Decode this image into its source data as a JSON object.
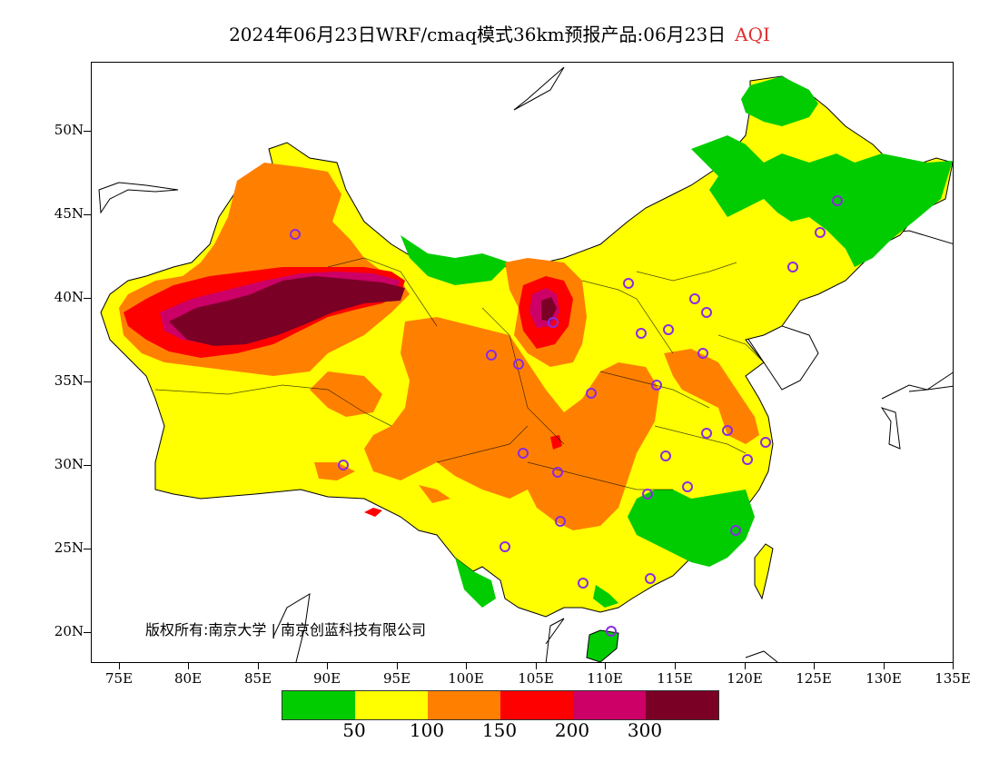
{
  "title": {
    "main": "2024年06月23日WRF/cmaq模式36km预报产品:06月23日",
    "variable": "AQI"
  },
  "map": {
    "lat_labels": [
      "50N",
      "45N",
      "40N",
      "35N",
      "30N",
      "25N",
      "20N"
    ],
    "lon_labels": [
      "75E",
      "80E",
      "85E",
      "90E",
      "95E",
      "100E",
      "105E",
      "110E",
      "115E",
      "120E",
      "125E",
      "130E",
      "135E"
    ],
    "copyright": "版权所有:南京大学 | 南京创蓝科技有限公司"
  },
  "legend": {
    "colors": [
      "#00cc00",
      "#ffff00",
      "#ff8000",
      "#ff0000",
      "#cc0066",
      "#7a0026"
    ],
    "labels": [
      "50",
      "100",
      "150",
      "200",
      "300"
    ]
  },
  "colors": {
    "good": "#00cc00",
    "moderate": "#ffff00",
    "sensitive": "#ff8000",
    "unhealthy": "#ff0000",
    "very_unhealthy": "#cc0066",
    "hazardous": "#7a0026",
    "station_marker": "#8a2be2"
  }
}
